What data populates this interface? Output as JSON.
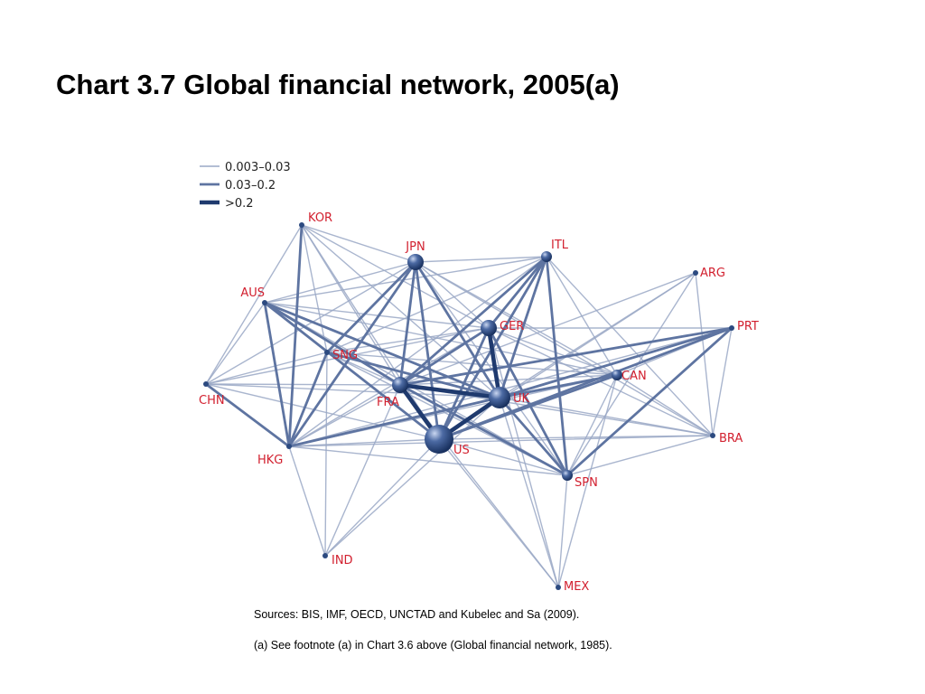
{
  "title": "Chart 3.7 Global financial network, 2005(a)",
  "legend": [
    {
      "label": "0.003–0.03",
      "tier": 1
    },
    {
      "label": "0.03–0.2",
      "tier": 2
    },
    {
      "label": ">0.2",
      "tier": 3
    }
  ],
  "colors": {
    "tier1": "#9aa8c6",
    "tier2": "#5e74a1",
    "tier3": "#1f3a6e",
    "node_fill": "#2c4a80",
    "label": "#d2202f"
  },
  "nodes": [
    {
      "id": "KOR",
      "label": "KOR",
      "weight": 1
    },
    {
      "id": "JPN",
      "label": "JPN",
      "weight": 3
    },
    {
      "id": "ITL",
      "label": "ITL",
      "weight": 2
    },
    {
      "id": "ARG",
      "label": "ARG",
      "weight": 1
    },
    {
      "id": "AUS",
      "label": "AUS",
      "weight": 1
    },
    {
      "id": "GER",
      "label": "GER",
      "weight": 3
    },
    {
      "id": "PRT",
      "label": "PRT",
      "weight": 1
    },
    {
      "id": "SNG",
      "label": "SNG",
      "weight": 1
    },
    {
      "id": "CAN",
      "label": "CAN",
      "weight": 2
    },
    {
      "id": "CHN",
      "label": "CHN",
      "weight": 1
    },
    {
      "id": "FRA",
      "label": "FRA",
      "weight": 3
    },
    {
      "id": "UK",
      "label": "UK",
      "weight": 4
    },
    {
      "id": "BRA",
      "label": "BRA",
      "weight": 1
    },
    {
      "id": "US",
      "label": "US",
      "weight": 5
    },
    {
      "id": "HKG",
      "label": "HKG",
      "weight": 1
    },
    {
      "id": "SPN",
      "label": "SPN",
      "weight": 2
    },
    {
      "id": "IND",
      "label": "IND",
      "weight": 1
    },
    {
      "id": "MEX",
      "label": "MEX",
      "weight": 1
    }
  ],
  "edges": [
    [
      "US",
      "UK",
      3
    ],
    [
      "UK",
      "GER",
      3
    ],
    [
      "FRA",
      "UK",
      3
    ],
    [
      "US",
      "FRA",
      3
    ],
    [
      "US",
      "GER",
      2
    ],
    [
      "FRA",
      "GER",
      2
    ],
    [
      "JPN",
      "US",
      2
    ],
    [
      "JPN",
      "UK",
      2
    ],
    [
      "JPN",
      "FRA",
      2
    ],
    [
      "ITL",
      "FRA",
      2
    ],
    [
      "ITL",
      "UK",
      2
    ],
    [
      "ITL",
      "GER",
      2
    ],
    [
      "ITL",
      "SPN",
      2
    ],
    [
      "ITL",
      "US",
      2
    ],
    [
      "SPN",
      "UK",
      2
    ],
    [
      "SPN",
      "FRA",
      2
    ],
    [
      "SPN",
      "GER",
      2
    ],
    [
      "SPN",
      "PRT",
      2
    ],
    [
      "UK",
      "PRT",
      2
    ],
    [
      "UK",
      "CAN",
      2
    ],
    [
      "FRA",
      "PRT",
      2
    ],
    [
      "AUS",
      "UK",
      2
    ],
    [
      "AUS",
      "HKG",
      2
    ],
    [
      "AUS",
      "US",
      2
    ],
    [
      "HKG",
      "UK",
      2
    ],
    [
      "HKG",
      "SNG",
      2
    ],
    [
      "HKG",
      "JPN",
      2
    ],
    [
      "HKG",
      "CHN",
      2
    ],
    [
      "SNG",
      "UK",
      2
    ],
    [
      "KOR",
      "HKG",
      2
    ],
    [
      "CAN",
      "US",
      2
    ],
    [
      "US",
      "PRT",
      2
    ],
    [
      "JPN",
      "SNG",
      2
    ],
    [
      "FRA",
      "AUS",
      2
    ],
    [
      "KOR",
      "UK",
      1
    ],
    [
      "KOR",
      "US",
      1
    ],
    [
      "KOR",
      "FRA",
      1
    ],
    [
      "KOR",
      "JPN",
      1
    ],
    [
      "KOR",
      "SNG",
      1
    ],
    [
      "KOR",
      "GER",
      1
    ],
    [
      "JPN",
      "ITL",
      1
    ],
    [
      "JPN",
      "GER",
      1
    ],
    [
      "JPN",
      "CAN",
      1
    ],
    [
      "JPN",
      "SPN",
      1
    ],
    [
      "JPN",
      "AUS",
      1
    ],
    [
      "JPN",
      "CHN",
      1
    ],
    [
      "JPN",
      "BRA",
      1
    ],
    [
      "ITL",
      "CAN",
      1
    ],
    [
      "ITL",
      "BRA",
      1
    ],
    [
      "ITL",
      "HKG",
      1
    ],
    [
      "ITL",
      "SNG",
      1
    ],
    [
      "ITL",
      "AUS",
      1
    ],
    [
      "ARG",
      "SPN",
      1
    ],
    [
      "ARG",
      "US",
      1
    ],
    [
      "ARG",
      "UK",
      1
    ],
    [
      "ARG",
      "BRA",
      1
    ],
    [
      "ARG",
      "FRA",
      1
    ],
    [
      "AUS",
      "GER",
      1
    ],
    [
      "AUS",
      "CAN",
      1
    ],
    [
      "AUS",
      "SNG",
      1
    ],
    [
      "AUS",
      "SPN",
      1
    ],
    [
      "GER",
      "CAN",
      1
    ],
    [
      "GER",
      "PRT",
      1
    ],
    [
      "GER",
      "HKG",
      1
    ],
    [
      "GER",
      "SNG",
      1
    ],
    [
      "GER",
      "BRA",
      1
    ],
    [
      "PRT",
      "CAN",
      1
    ],
    [
      "PRT",
      "BRA",
      1
    ],
    [
      "PRT",
      "HKG",
      1
    ],
    [
      "SNG",
      "US",
      1
    ],
    [
      "SNG",
      "FRA",
      1
    ],
    [
      "SNG",
      "CAN",
      1
    ],
    [
      "SNG",
      "IND",
      1
    ],
    [
      "SNG",
      "SPN",
      1
    ],
    [
      "CAN",
      "BRA",
      1
    ],
    [
      "CAN",
      "HKG",
      1
    ],
    [
      "CAN",
      "SPN",
      1
    ],
    [
      "CAN",
      "FRA",
      1
    ],
    [
      "CHN",
      "US",
      1
    ],
    [
      "CHN",
      "UK",
      1
    ],
    [
      "CHN",
      "FRA",
      1
    ],
    [
      "CHN",
      "SNG",
      1
    ],
    [
      "CHN",
      "GER",
      1
    ],
    [
      "CHN",
      "KOR",
      1
    ],
    [
      "CHN",
      "AUS",
      1
    ],
    [
      "FRA",
      "BRA",
      1
    ],
    [
      "FRA",
      "HKG",
      1
    ],
    [
      "FRA",
      "IND",
      1
    ],
    [
      "FRA",
      "MEX",
      1
    ],
    [
      "UK",
      "BRA",
      1
    ],
    [
      "UK",
      "MEX",
      1
    ],
    [
      "UK",
      "IND",
      1
    ],
    [
      "US",
      "BRA",
      1
    ],
    [
      "US",
      "MEX",
      1
    ],
    [
      "US",
      "SPN",
      1
    ],
    [
      "US",
      "HKG",
      1
    ],
    [
      "US",
      "IND",
      1
    ],
    [
      "HKG",
      "IND",
      1
    ],
    [
      "HKG",
      "SPN",
      1
    ],
    [
      "HKG",
      "BRA",
      1
    ],
    [
      "SPN",
      "MEX",
      1
    ],
    [
      "SPN",
      "BRA",
      1
    ],
    [
      "GER",
      "MEX",
      1
    ],
    [
      "CAN",
      "MEX",
      1
    ]
  ],
  "sources": "Sources:  BIS, IMF, OECD, UNCTAD and Kubelec and Sa (2009).",
  "footnote": "(a)  See footnote (a) in Chart 3.6 above (Global financial network, 1985)."
}
